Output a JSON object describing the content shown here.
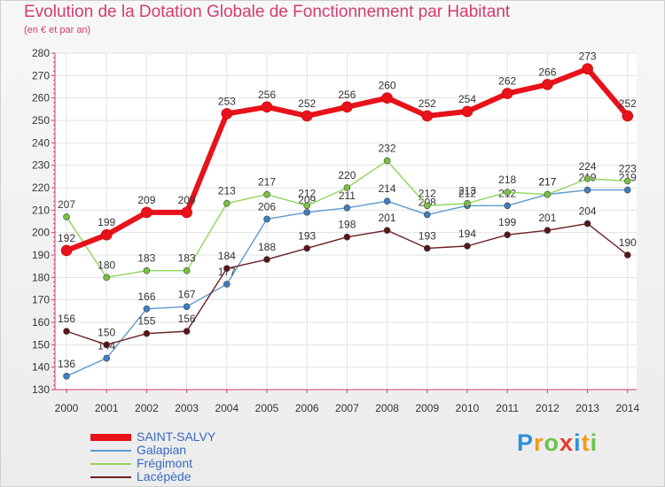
{
  "chart_data": {
    "type": "line",
    "title": "Evolution de la Dotation Globale de Fonctionnement par Habitant",
    "subtitle": "(en € et par an)",
    "xlabel": "",
    "ylabel": "",
    "x": [
      "2000",
      "2001",
      "2002",
      "2003",
      "2004",
      "2005",
      "2006",
      "2007",
      "2008",
      "2009",
      "2010",
      "2011",
      "2012",
      "2013",
      "2014"
    ],
    "yticks": [
      130,
      140,
      150,
      160,
      170,
      180,
      190,
      200,
      210,
      220,
      230,
      240,
      250,
      260,
      270,
      280
    ],
    "ylim": [
      130,
      280
    ],
    "grid": true,
    "legend_position": "bottom-left",
    "series": [
      {
        "name": "SAINT-SALVY",
        "color": "#e8121a",
        "values": [
          192,
          199,
          209,
          209,
          253,
          256,
          252,
          256,
          260,
          252,
          254,
          262,
          266,
          273,
          252
        ]
      },
      {
        "name": "Galapian",
        "color": "#5b9bd0",
        "values": [
          136,
          144,
          166,
          167,
          177,
          206,
          209,
          211,
          214,
          208,
          212,
          212,
          217,
          219,
          219
        ]
      },
      {
        "name": "Frégimont",
        "color": "#8fd65a",
        "values": [
          207,
          180,
          183,
          183,
          213,
          217,
          212,
          220,
          232,
          212,
          213,
          218,
          217,
          224,
          223
        ]
      },
      {
        "name": "Lacépède",
        "color": "#6b1f22",
        "values": [
          156,
          150,
          155,
          156,
          184,
          188,
          193,
          198,
          201,
          193,
          194,
          199,
          201,
          204,
          190
        ]
      }
    ],
    "data_labels": {
      "SAINT-SALVY": [
        "192",
        "199",
        "209",
        "209",
        "253",
        "256",
        "252",
        "256",
        "260",
        "252",
        "254",
        "262",
        "266",
        "273",
        "252"
      ],
      "Galapian": [
        "136",
        "144",
        "166",
        "167",
        "177",
        "206",
        "209",
        "211",
        "214",
        "208",
        "212",
        "212",
        "217",
        "219",
        "219"
      ],
      "Frégimont": [
        "207",
        "180",
        "183",
        "183",
        "213",
        "217",
        "212",
        "220",
        "232",
        "212",
        "213",
        "218",
        "217",
        "224",
        "223"
      ],
      "Lacépède": [
        "156",
        "150",
        "155",
        "156",
        "184",
        "188",
        "193",
        "198",
        "201",
        "193",
        "194",
        "199",
        "201",
        "204",
        "190"
      ]
    }
  },
  "logo": {
    "letters": [
      "P",
      "r",
      "o",
      "x",
      "i",
      "t",
      "i"
    ],
    "colors": [
      "#2f8fd8",
      "#f39a1c",
      "#6cc24a",
      "#e63a2e",
      "#2f8fd8",
      "#f39a1c",
      "#6cc24a"
    ]
  }
}
